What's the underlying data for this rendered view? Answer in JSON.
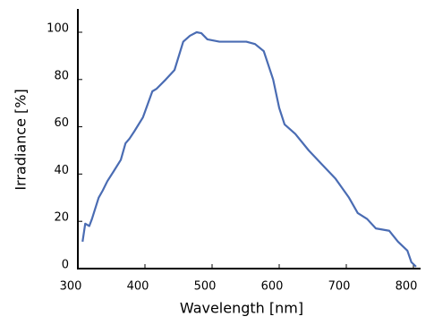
{
  "chart_data": {
    "type": "line",
    "x_label": "Wavelength [nm]",
    "y_label": "Irradiance [%]",
    "x": [
      307,
      311,
      317,
      321,
      331,
      337,
      344,
      353,
      364,
      371,
      377,
      384,
      397,
      411,
      417,
      431,
      444,
      457,
      467,
      477,
      484,
      493,
      511,
      531,
      551,
      564,
      577,
      591,
      600,
      608,
      624,
      644,
      664,
      684,
      704,
      717,
      731,
      744,
      764,
      777,
      791,
      797,
      804
    ],
    "series": [
      {
        "name": "Irradiance",
        "color": "#4a6cb3",
        "values": [
          11.4,
          19,
          18,
          21,
          30,
          33,
          37,
          41,
          46,
          53,
          55,
          58,
          64,
          75,
          76,
          80,
          84,
          96,
          98.5,
          100,
          99.6,
          97,
          96,
          96,
          96,
          95,
          92,
          80,
          68,
          61,
          57,
          50,
          44,
          38,
          30,
          23.5,
          21,
          17,
          16,
          11.4,
          7.6,
          2.7,
          0.8
        ]
      }
    ],
    "xlim": [
      300,
      810
    ],
    "xticks": [
      300,
      400,
      500,
      600,
      700,
      800
    ],
    "ylim": [
      0,
      110
    ],
    "yticks": [
      0,
      20,
      40,
      60,
      80,
      100
    ],
    "grid": false
  }
}
